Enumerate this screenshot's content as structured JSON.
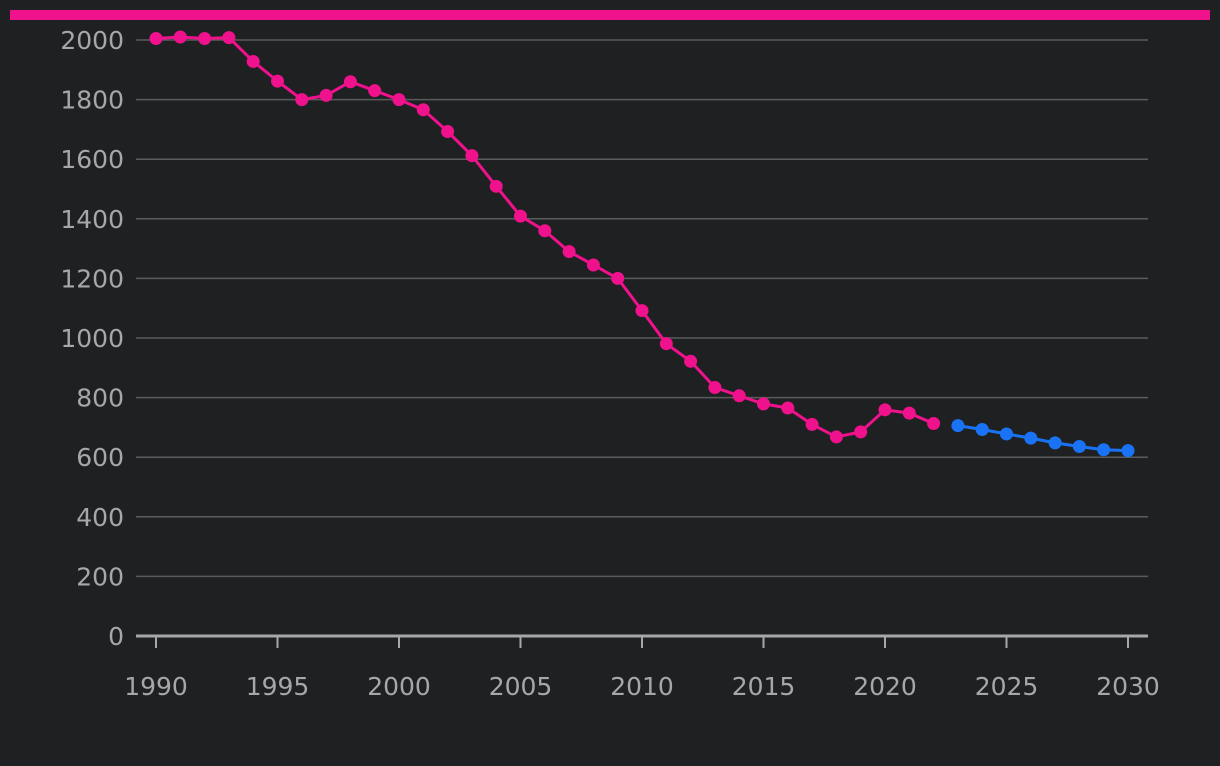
{
  "theme": {
    "background": "#1f2022",
    "accent": "#f0118c",
    "gridline": "#5a5b5d",
    "axis": "#a7a7a9",
    "text": "#a7a7a9"
  },
  "chart_data": {
    "type": "line",
    "title": "",
    "xlabel": "",
    "ylabel": "",
    "xlim": [
      1990,
      2030
    ],
    "ylim": [
      0,
      2000
    ],
    "x_ticks": [
      1990,
      1995,
      2000,
      2005,
      2010,
      2015,
      2020,
      2025,
      2030
    ],
    "y_ticks": [
      0,
      200,
      400,
      600,
      800,
      1000,
      1200,
      1400,
      1600,
      1800,
      2000
    ],
    "grid": true,
    "legend": "none",
    "series": [
      {
        "color": "#f0118c",
        "x": [
          1990,
          1991,
          1992,
          1993,
          1994,
          1995,
          1996,
          1997,
          1998,
          1999,
          2000,
          2001,
          2002,
          2003,
          2004,
          2005,
          2006,
          2007,
          2008,
          2009,
          2010,
          2011,
          2012,
          2013,
          2014,
          2015,
          2016,
          2017,
          2018,
          2019,
          2020,
          2021,
          2022
        ],
        "y": [
          2005,
          2010,
          2005,
          2008,
          1928,
          1862,
          1800,
          1814,
          1860,
          1830,
          1800,
          1766,
          1693,
          1612,
          1509,
          1409,
          1360,
          1290,
          1245,
          1200,
          1092,
          981,
          922,
          834,
          806,
          779,
          765,
          710,
          668,
          685,
          759,
          748,
          713
        ]
      },
      {
        "color": "#1a73f5",
        "x": [
          2023,
          2024,
          2025,
          2026,
          2027,
          2028,
          2029,
          2030
        ],
        "y": [
          706,
          693,
          678,
          664,
          648,
          636,
          625,
          622
        ]
      }
    ]
  }
}
